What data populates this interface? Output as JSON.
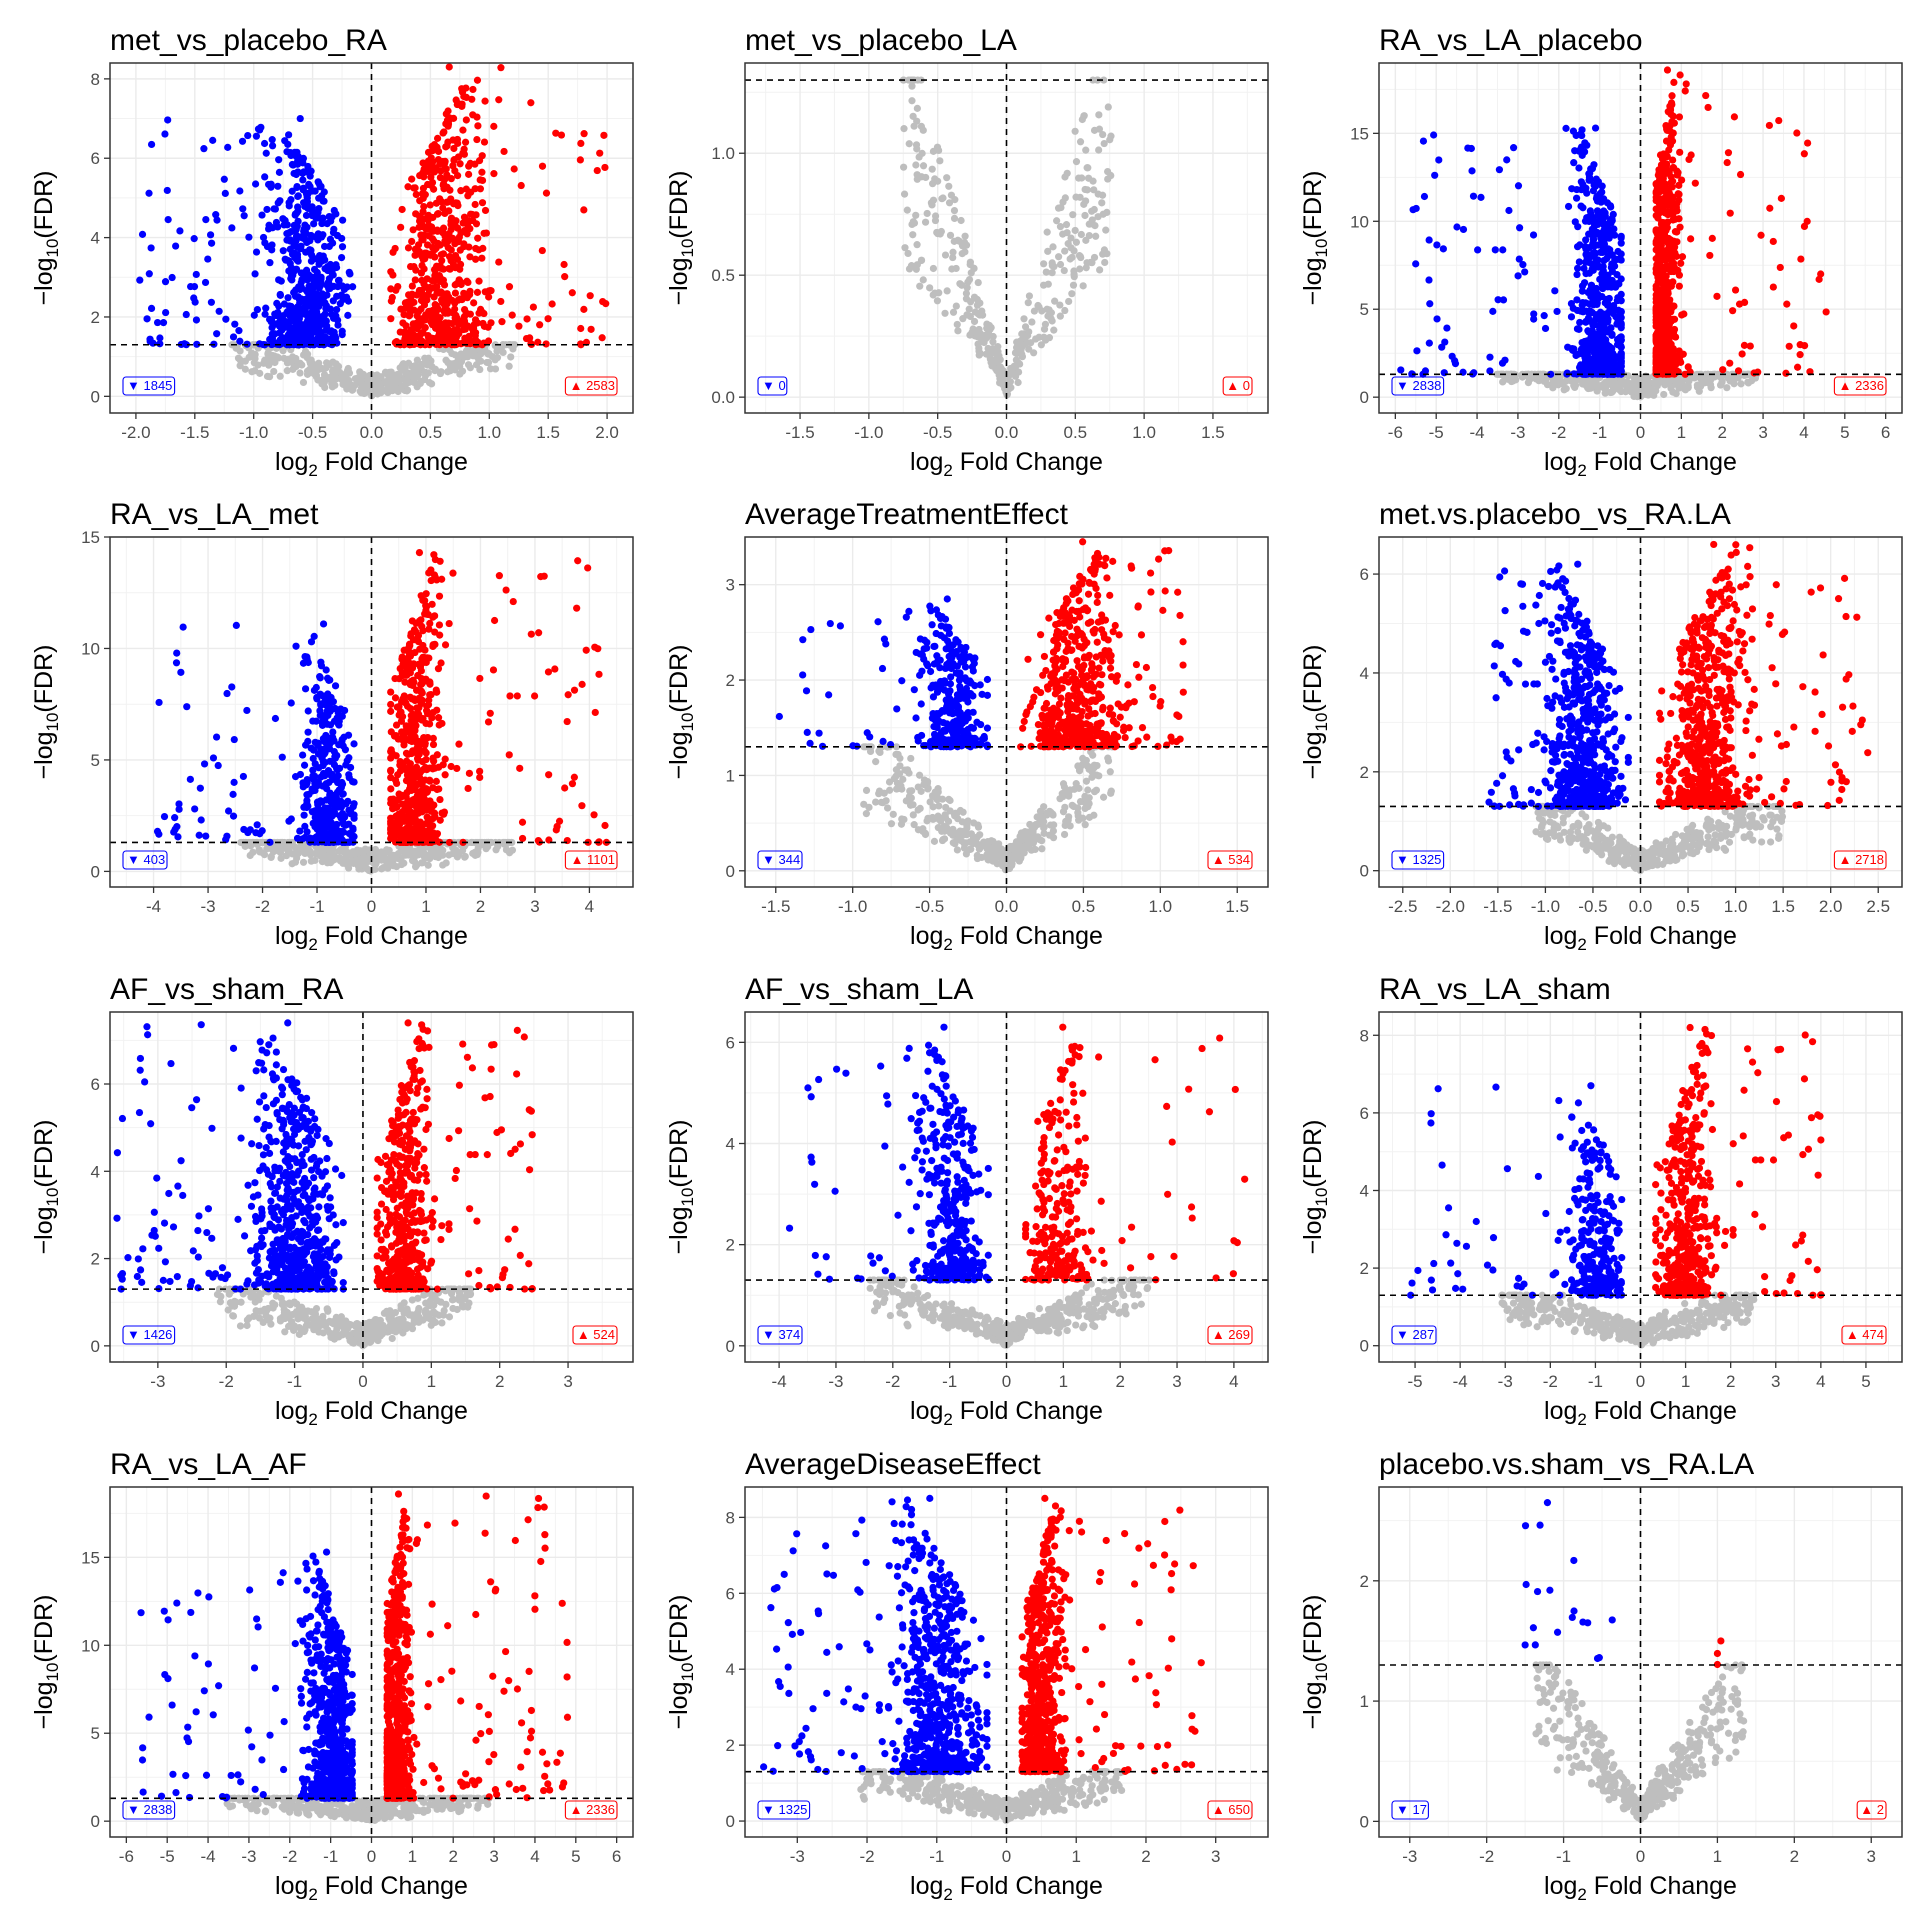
{
  "chart_data": [
    {
      "type": "scatter",
      "title": "met_vs_placebo_RA",
      "xlabel": "Fold Change",
      "ylabel": "(FDR)",
      "xlim": [
        -2.22,
        2.22
      ],
      "ylim": [
        -0.42,
        8.4
      ],
      "xticks": [
        -2,
        -1.5,
        -1,
        -0.5,
        0,
        0.5,
        1,
        1.5,
        2
      ],
      "xtick_labels": [
        "-2.0",
        "-1.5",
        "-1.0",
        "-0.5",
        "0.0",
        "0.5",
        "1.0",
        "1.5",
        "2.0"
      ],
      "yticks": [
        0,
        2,
        4,
        6,
        8
      ],
      "ytick_labels": [
        "0",
        "2",
        "4",
        "6",
        "8"
      ],
      "fdr_threshold": 1.3,
      "down": {
        "count": 1845,
        "label": "▼ 1845",
        "color": "#0000ff",
        "xmin": -2.0,
        "xpeak": -0.55,
        "ymax": 7.0
      },
      "up": {
        "count": 2583,
        "label": "▲ 2583",
        "color": "#ff0000",
        "xmax": 2.05,
        "xpeak": 0.6,
        "ymax": 8.3
      },
      "ns_color": "#bebebe",
      "grid": true,
      "legend": "none"
    },
    {
      "type": "scatter",
      "title": "met_vs_placebo_LA",
      "xlabel": "Fold Change",
      "ylabel": "(FDR)",
      "xlim": [
        -1.9,
        1.9
      ],
      "ylim": [
        -0.065,
        1.37
      ],
      "xticks": [
        -1.5,
        -1,
        -0.5,
        0,
        0.5,
        1,
        1.5
      ],
      "xtick_labels": [
        "-1.5",
        "-1.0",
        "-0.5",
        "0.0",
        "0.5",
        "1.0",
        "1.5"
      ],
      "yticks": [
        0,
        0.5,
        1
      ],
      "ytick_labels": [
        "0.0",
        "0.5",
        "1.0"
      ],
      "fdr_threshold": 1.3,
      "down": {
        "count": 0,
        "label": "▼ 0",
        "color": "#0000ff"
      },
      "up": {
        "count": 0,
        "label": "▲ 0",
        "color": "#ff0000"
      },
      "ns_color": "#bebebe",
      "grid": true,
      "legend": "none"
    },
    {
      "type": "scatter",
      "title": "RA_vs_LA_placebo",
      "xlabel": "Fold Change",
      "ylabel": "(FDR)",
      "xlim": [
        -6.4,
        6.4
      ],
      "ylim": [
        -0.9,
        19
      ],
      "xticks": [
        -6,
        -5,
        -4,
        -3,
        -2,
        -1,
        0,
        1,
        2,
        3,
        4,
        5,
        6
      ],
      "xtick_labels": [
        "-6",
        "-5",
        "-4",
        "-3",
        "-2",
        "-1",
        "0",
        "1",
        "2",
        "3",
        "4",
        "5",
        "6"
      ],
      "yticks": [
        0,
        5,
        10,
        15
      ],
      "ytick_labels": [
        "0",
        "5",
        "10",
        "15"
      ],
      "fdr_threshold": 1.3,
      "down": {
        "count": 2838,
        "label": "▼ 2838",
        "color": "#0000ff",
        "xmin": -5.9,
        "xpeak": -1.0,
        "ymax": 15.3
      },
      "up": {
        "count": 2336,
        "label": "▲ 2336",
        "color": "#ff0000",
        "xmax": 4.8,
        "xpeak": 0.6,
        "ymax": 18.6
      },
      "ns_color": "#bebebe",
      "grid": true,
      "legend": "none"
    },
    {
      "type": "scatter",
      "title": "RA_vs_LA_met",
      "xlabel": "Fold Change",
      "ylabel": "(FDR)",
      "xlim": [
        -4.8,
        4.8
      ],
      "ylim": [
        -0.7,
        15
      ],
      "xticks": [
        -4,
        -3,
        -2,
        -1,
        0,
        1,
        2,
        3,
        4
      ],
      "xtick_labels": [
        "-4",
        "-3",
        "-2",
        "-1",
        "0",
        "1",
        "2",
        "3",
        "4"
      ],
      "yticks": [
        0,
        5,
        10,
        15
      ],
      "ytick_labels": [
        "0",
        "5",
        "10",
        "15"
      ],
      "fdr_threshold": 1.3,
      "down": {
        "count": 403,
        "label": "▼ 403",
        "color": "#0000ff",
        "xmin": -4.0,
        "xpeak": -0.8,
        "ymax": 11.1
      },
      "up": {
        "count": 1101,
        "label": "▲ 1101",
        "color": "#ff0000",
        "xmax": 4.4,
        "xpeak": 0.8,
        "ymax": 14.3
      },
      "ns_color": "#bebebe",
      "grid": true,
      "legend": "none"
    },
    {
      "type": "scatter",
      "title": "AverageTreatmentEffect",
      "xlabel": "Fold Change",
      "ylabel": "(FDR)",
      "xlim": [
        -1.7,
        1.7
      ],
      "ylim": [
        -0.17,
        3.5
      ],
      "xticks": [
        -1.5,
        -1,
        -0.5,
        0,
        0.5,
        1,
        1.5
      ],
      "xtick_labels": [
        "-1.5",
        "-1.0",
        "-0.5",
        "0.0",
        "0.5",
        "1.0",
        "1.5"
      ],
      "yticks": [
        0,
        1,
        2,
        3
      ],
      "ytick_labels": [
        "0",
        "1",
        "2",
        "3"
      ],
      "fdr_threshold": 1.3,
      "down": {
        "count": 344,
        "label": "▼ 344",
        "color": "#0000ff",
        "xmin": -1.55,
        "xpeak": -0.35,
        "ymax": 2.85
      },
      "up": {
        "count": 534,
        "label": "▲ 534",
        "color": "#ff0000",
        "xmax": 1.15,
        "xpeak": 0.45,
        "ymax": 3.45
      },
      "ns_color": "#bebebe",
      "grid": true,
      "legend": "none"
    },
    {
      "type": "scatter",
      "title": "met.vs.placebo_vs_RA.LA",
      "xlabel": "Fold Change",
      "ylabel": "(FDR)",
      "xlim": [
        -2.75,
        2.75
      ],
      "ylim": [
        -0.33,
        6.75
      ],
      "xticks": [
        -2.5,
        -2,
        -1.5,
        -1,
        -0.5,
        0,
        0.5,
        1,
        1.5,
        2,
        2.5
      ],
      "xtick_labels": [
        "-2.5",
        "-2.0",
        "-1.5",
        "-1.0",
        "-0.5",
        "0.0",
        "0.5",
        "1.0",
        "1.5",
        "2.0",
        "2.5"
      ],
      "yticks": [
        0,
        2,
        4,
        6
      ],
      "ytick_labels": [
        "0",
        "2",
        "4",
        "6"
      ],
      "fdr_threshold": 1.3,
      "down": {
        "count": 1325,
        "label": "▼ 1325",
        "color": "#0000ff",
        "xmin": -1.6,
        "xpeak": -0.6,
        "ymax": 6.2
      },
      "up": {
        "count": 2718,
        "label": "▲ 2718",
        "color": "#ff0000",
        "xmax": 2.5,
        "xpeak": 0.7,
        "ymax": 6.6
      },
      "ns_color": "#bebebe",
      "grid": true,
      "legend": "none"
    },
    {
      "type": "scatter",
      "title": "AF_vs_sham_RA",
      "xlabel": "Fold Change",
      "ylabel": "(FDR)",
      "xlim": [
        -3.7,
        3.95
      ],
      "ylim": [
        -0.37,
        7.65
      ],
      "xticks": [
        -3,
        -2,
        -1,
        0,
        1,
        2,
        3
      ],
      "xtick_labels": [
        "-3",
        "-2",
        "-1",
        "0",
        "1",
        "2",
        "3"
      ],
      "yticks": [
        0,
        2,
        4,
        6
      ],
      "ytick_labels": [
        "0",
        "2",
        "4",
        "6"
      ],
      "fdr_threshold": 1.3,
      "down": {
        "count": 1426,
        "label": "▼ 1426",
        "color": "#0000ff",
        "xmin": -3.6,
        "xpeak": -1.0,
        "ymax": 7.4
      },
      "up": {
        "count": 524,
        "label": "▲ 524",
        "color": "#ff0000",
        "xmax": 2.6,
        "xpeak": 0.6,
        "ymax": 7.4
      },
      "ns_color": "#bebebe",
      "grid": true,
      "legend": "none"
    },
    {
      "type": "scatter",
      "title": "AF_vs_sham_LA",
      "xlabel": "Fold Change",
      "ylabel": "(FDR)",
      "xlim": [
        -4.6,
        4.6
      ],
      "ylim": [
        -0.32,
        6.6
      ],
      "xticks": [
        -4,
        -3,
        -2,
        -1,
        0,
        1,
        2,
        3,
        4
      ],
      "xtick_labels": [
        "-4",
        "-3",
        "-2",
        "-1",
        "0",
        "1",
        "2",
        "3",
        "4"
      ],
      "yticks": [
        0,
        2,
        4,
        6
      ],
      "ytick_labels": [
        "0",
        "2",
        "4",
        "6"
      ],
      "fdr_threshold": 1.3,
      "down": {
        "count": 374,
        "label": "▼ 374",
        "color": "#0000ff",
        "xmin": -4.0,
        "xpeak": -1.0,
        "ymax": 6.3
      },
      "up": {
        "count": 269,
        "label": "▲ 269",
        "color": "#ff0000",
        "xmax": 4.2,
        "xpeak": 0.9,
        "ymax": 6.3
      },
      "ns_color": "#bebebe",
      "grid": true,
      "legend": "none"
    },
    {
      "type": "scatter",
      "title": "RA_vs_LA_sham",
      "xlabel": "Fold Change",
      "ylabel": "(FDR)",
      "xlim": [
        -5.8,
        5.8
      ],
      "ylim": [
        -0.42,
        8.6
      ],
      "xticks": [
        -5,
        -4,
        -3,
        -2,
        -1,
        0,
        1,
        2,
        3,
        4,
        5
      ],
      "xtick_labels": [
        "-5",
        "-4",
        "-3",
        "-2",
        "-1",
        "0",
        "1",
        "2",
        "3",
        "4",
        "5"
      ],
      "yticks": [
        0,
        2,
        4,
        6,
        8
      ],
      "ytick_labels": [
        "0",
        "2",
        "4",
        "6",
        "8"
      ],
      "fdr_threshold": 1.3,
      "down": {
        "count": 287,
        "label": "▼ 287",
        "color": "#0000ff",
        "xmin": -5.2,
        "xpeak": -1.0,
        "ymax": 6.7
      },
      "up": {
        "count": 474,
        "label": "▲ 474",
        "color": "#ff0000",
        "xmax": 4.2,
        "xpeak": 1.0,
        "ymax": 8.2
      },
      "ns_color": "#bebebe",
      "grid": true,
      "legend": "none"
    },
    {
      "type": "scatter",
      "title": "RA_vs_LA_AF",
      "xlabel": "Fold Change",
      "ylabel": "(FDR)",
      "xlim": [
        -6.4,
        6.4
      ],
      "ylim": [
        -0.9,
        19
      ],
      "xticks": [
        -6,
        -5,
        -4,
        -3,
        -2,
        -1,
        0,
        1,
        2,
        3,
        4,
        5,
        6
      ],
      "xtick_labels": [
        "-6",
        "-5",
        "-4",
        "-3",
        "-2",
        "-1",
        "0",
        "1",
        "2",
        "3",
        "4",
        "5",
        "6"
      ],
      "yticks": [
        0,
        5,
        10,
        15
      ],
      "ytick_labels": [
        "0",
        "5",
        "10",
        "15"
      ],
      "fdr_threshold": 1.3,
      "down": {
        "count": 2838,
        "label": "▼ 2838",
        "color": "#0000ff",
        "xmin": -5.9,
        "xpeak": -1.0,
        "ymax": 15.3
      },
      "up": {
        "count": 2336,
        "label": "▲ 2336",
        "color": "#ff0000",
        "xmax": 4.8,
        "xpeak": 0.6,
        "ymax": 18.6
      },
      "ns_color": "#bebebe",
      "grid": true,
      "legend": "none"
    },
    {
      "type": "scatter",
      "title": "AverageDiseaseEffect",
      "xlabel": "Fold Change",
      "ylabel": "(FDR)",
      "xlim": [
        -3.75,
        3.75
      ],
      "ylim": [
        -0.42,
        8.8
      ],
      "xticks": [
        -3,
        -2,
        -1,
        0,
        1,
        2,
        3
      ],
      "xtick_labels": [
        "-3",
        "-2",
        "-1",
        "0",
        "1",
        "2",
        "3"
      ],
      "yticks": [
        0,
        2,
        4,
        6,
        8
      ],
      "ytick_labels": [
        "0",
        "2",
        "4",
        "6",
        "8"
      ],
      "fdr_threshold": 1.3,
      "down": {
        "count": 1325,
        "label": "▼ 1325",
        "color": "#0000ff",
        "xmin": -3.5,
        "xpeak": -1.0,
        "ymax": 8.5
      },
      "up": {
        "count": 650,
        "label": "▲ 650",
        "color": "#ff0000",
        "xmax": 2.8,
        "xpeak": 0.5,
        "ymax": 8.5
      },
      "ns_color": "#bebebe",
      "grid": true,
      "legend": "none"
    },
    {
      "type": "scatter",
      "title": "placebo.vs.sham_vs_RA.LA",
      "xlabel": "Fold Change",
      "ylabel": "(FDR)",
      "xlim": [
        -3.4,
        3.4
      ],
      "ylim": [
        -0.13,
        2.78
      ],
      "xticks": [
        -3,
        -2,
        -1,
        0,
        1,
        2,
        3
      ],
      "xtick_labels": [
        "-3",
        "-2",
        "-1",
        "0",
        "1",
        "2",
        "3"
      ],
      "yticks": [
        0,
        1,
        2
      ],
      "ytick_labels": [
        "0",
        "1",
        "2"
      ],
      "fdr_threshold": 1.3,
      "down": {
        "count": 17,
        "label": "▼ 17",
        "color": "#0000ff",
        "xmin": -1.5,
        "xpeak": -1.1,
        "ymax": 2.65
      },
      "up": {
        "count": 2,
        "label": "▲ 2",
        "color": "#ff0000",
        "xmax": 1.0,
        "xpeak": 0.95,
        "ymax": 1.5
      },
      "ns_color": "#bebebe",
      "grid": true,
      "legend": "none"
    }
  ]
}
